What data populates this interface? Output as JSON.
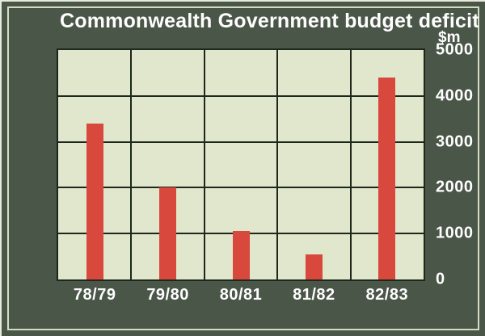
{
  "title": "Commonwealth Government budget deficit",
  "unit_label": "$m",
  "colors": {
    "background": "#4a5648",
    "frame_line": "#d6dcc4",
    "plot_background": "#e0e7cd",
    "grid": "#1d271c",
    "bar": "#d8483d",
    "text": "#ffffff"
  },
  "chart_data": {
    "type": "bar",
    "title": "Commonwealth Government budget deficit",
    "categories": [
      "78/79",
      "79/80",
      "80/81",
      "81/82",
      "82/83"
    ],
    "values": [
      3400,
      2000,
      1050,
      550,
      4400
    ],
    "xlabel": "",
    "ylabel": "$m",
    "ylim": [
      0,
      5000
    ],
    "yticks": [
      0,
      1000,
      2000,
      3000,
      4000,
      5000
    ],
    "grid": true,
    "legend": false,
    "bar_color": "#d8483d"
  }
}
